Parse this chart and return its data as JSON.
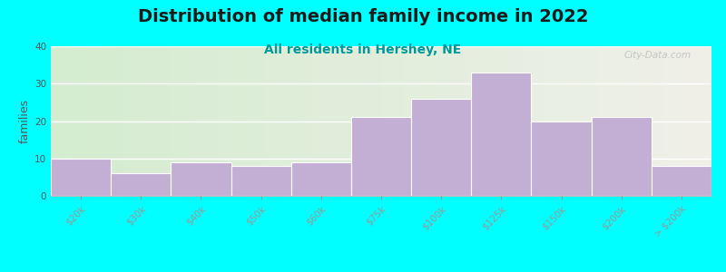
{
  "title": "Distribution of median family income in 2022",
  "subtitle": "All residents in Hershey, NE",
  "ylabel": "families",
  "categories": [
    "$20k",
    "$30k",
    "$40k",
    "$50k",
    "$60k",
    "$75k",
    "$100k",
    "$125k",
    "$150k",
    "$200k",
    "> $200k"
  ],
  "values": [
    10,
    6,
    9,
    8,
    9,
    21,
    26,
    33,
    20,
    21,
    8
  ],
  "bar_color": "#c4afd4",
  "background_color": "#00ffff",
  "plot_bg_left_color": "#d4ecd0",
  "plot_bg_right_color": "#f0f0e8",
  "ylim": [
    0,
    40
  ],
  "yticks": [
    0,
    10,
    20,
    30,
    40
  ],
  "title_fontsize": 14,
  "subtitle_fontsize": 10,
  "subtitle_color": "#009999",
  "ylabel_fontsize": 9,
  "tick_fontsize": 7.5,
  "watermark": "City-Data.com",
  "fig_width": 8.0,
  "fig_height": 3.0,
  "dpi": 100
}
